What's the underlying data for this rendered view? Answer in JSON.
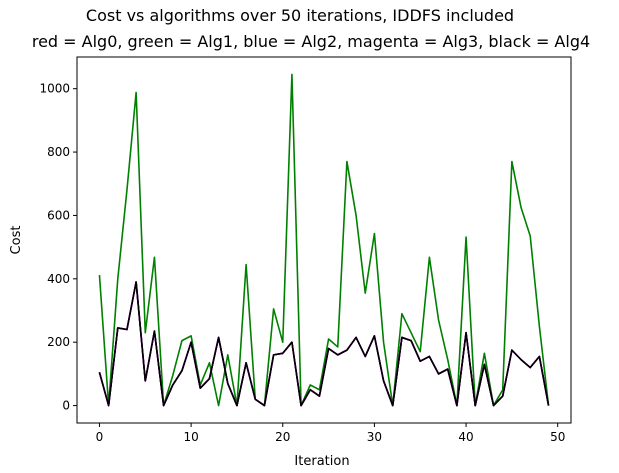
{
  "chart_data": {
    "type": "line",
    "title": "Cost vs algorithms over 50 iterations, IDDFS included",
    "subtitle": "red = Alg0, green = Alg1, blue = Alg2, magenta = Alg3, black = Alg4",
    "xlabel": "Iteration",
    "ylabel": "Cost",
    "xlim": [
      -2.45,
      51.45
    ],
    "ylim": [
      -55,
      1100
    ],
    "xticks": [
      0,
      10,
      20,
      30,
      40,
      50
    ],
    "yticks": [
      0,
      200,
      400,
      600,
      800,
      1000
    ],
    "grid": false,
    "x": [
      0,
      1,
      2,
      3,
      4,
      5,
      6,
      7,
      8,
      9,
      10,
      11,
      12,
      13,
      14,
      15,
      16,
      17,
      18,
      19,
      20,
      21,
      22,
      23,
      24,
      25,
      26,
      27,
      28,
      29,
      30,
      31,
      32,
      33,
      34,
      35,
      36,
      37,
      38,
      39,
      40,
      41,
      42,
      43,
      44,
      45,
      46,
      47,
      48,
      49
    ],
    "series": [
      {
        "name": "Alg1",
        "color": "#008000",
        "values": [
          412,
          0,
          400,
          680,
          988,
          230,
          468,
          0,
          95,
          205,
          220,
          65,
          135,
          0,
          160,
          0,
          445,
          20,
          0,
          305,
          200,
          1045,
          0,
          65,
          50,
          210,
          185,
          770,
          600,
          355,
          543,
          200,
          0,
          290,
          230,
          170,
          468,
          270,
          145,
          0,
          532,
          0,
          165,
          0,
          50,
          770,
          625,
          535,
          250,
          0
        ]
      },
      {
        "name": "Alg0",
        "color": "#ff0000",
        "values": [
          105,
          0,
          245,
          240,
          390,
          78,
          235,
          0,
          65,
          110,
          200,
          55,
          85,
          215,
          70,
          0,
          135,
          20,
          0,
          160,
          165,
          200,
          0,
          50,
          30,
          180,
          160,
          175,
          215,
          155,
          220,
          78,
          0,
          215,
          205,
          140,
          155,
          100,
          115,
          0,
          230,
          0,
          130,
          0,
          30,
          175,
          145,
          120,
          155,
          0
        ]
      },
      {
        "name": "Alg2",
        "color": "#0000ff",
        "values": [
          105,
          0,
          245,
          240,
          390,
          78,
          235,
          0,
          65,
          110,
          200,
          55,
          85,
          215,
          70,
          0,
          135,
          20,
          0,
          160,
          165,
          200,
          0,
          50,
          30,
          180,
          160,
          175,
          215,
          155,
          220,
          78,
          0,
          215,
          205,
          140,
          155,
          100,
          115,
          0,
          230,
          0,
          130,
          0,
          30,
          175,
          145,
          120,
          155,
          0
        ]
      },
      {
        "name": "Alg3",
        "color": "#bf00bf",
        "values": [
          105,
          0,
          245,
          240,
          390,
          78,
          235,
          0,
          65,
          110,
          200,
          55,
          85,
          215,
          70,
          0,
          135,
          20,
          0,
          160,
          165,
          200,
          0,
          50,
          30,
          180,
          160,
          175,
          215,
          155,
          220,
          78,
          0,
          215,
          205,
          140,
          155,
          100,
          115,
          0,
          230,
          0,
          130,
          0,
          30,
          175,
          145,
          120,
          155,
          0
        ]
      },
      {
        "name": "Alg4",
        "color": "#000000",
        "values": [
          105,
          0,
          245,
          240,
          390,
          78,
          235,
          0,
          65,
          110,
          200,
          55,
          85,
          215,
          70,
          0,
          135,
          20,
          0,
          160,
          165,
          200,
          0,
          50,
          30,
          180,
          160,
          175,
          215,
          155,
          220,
          78,
          0,
          215,
          205,
          140,
          155,
          100,
          115,
          0,
          230,
          0,
          130,
          0,
          30,
          175,
          145,
          120,
          155,
          0
        ]
      }
    ]
  }
}
